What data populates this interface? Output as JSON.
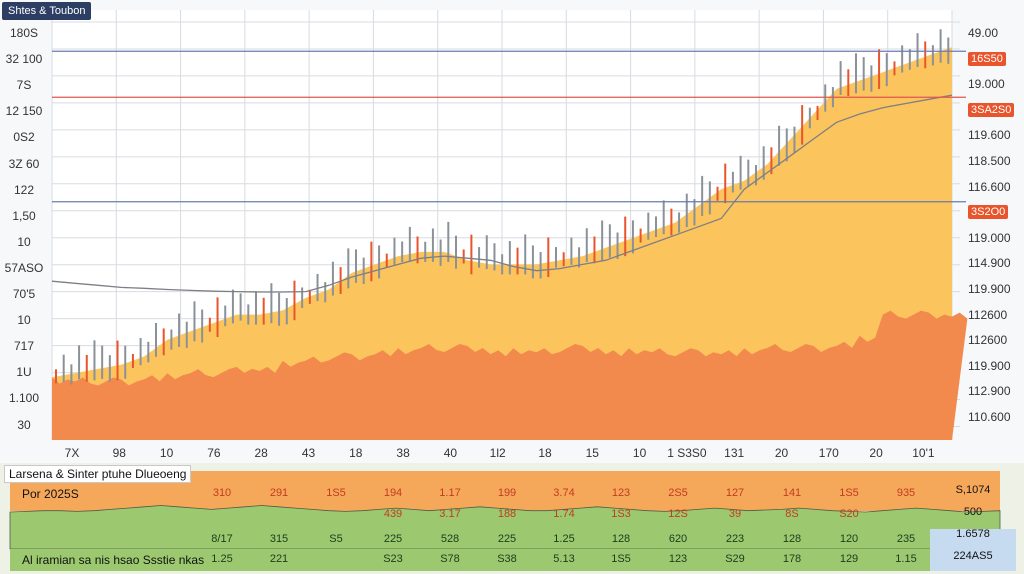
{
  "title": "Shtes & Toubon",
  "colors": {
    "orange_area": "#f28a4d",
    "yellow_area": "#fcc45d",
    "up_candle": "#8a9199",
    "down_candle": "#e8542c",
    "ma_line": "#7d7f86",
    "grid": "#d8dbe0",
    "hline_blue": "#6a7bb0",
    "hline_red": "#e0574f",
    "panel_orange": "#f6a85a",
    "panel_green": "#9cc96f",
    "panel_lightblue": "#c6dbef"
  },
  "chart_data": {
    "type": "area",
    "left_axis_labels": [
      "180S",
      "32 100",
      "7S",
      "12 150",
      "0S2",
      "3Z 60",
      "122",
      "1,50",
      "10",
      "57ASO",
      "70'5",
      "10",
      "717",
      "1U",
      "1.100",
      "30"
    ],
    "right_axis_labels": [
      "49.00",
      "16S50",
      "19.000",
      "3SA2S0",
      "119.600",
      "118.500",
      "116.600",
      "3S2O0",
      "119.000",
      "114.900",
      "119.900",
      "112600",
      "112600",
      "119.900",
      "112.900",
      "110.600"
    ],
    "right_axis_tags": [
      "16S50",
      "3SA2S0",
      "3S2O0"
    ],
    "x_tick_labels": [
      "7X",
      "98",
      "10",
      "76",
      "28",
      "43",
      "18",
      "38",
      "40",
      "1l2",
      "18",
      "15",
      "10",
      "1 S3S0",
      "131",
      "20",
      "170",
      "20",
      "10'1"
    ],
    "series": [
      {
        "name": "orange",
        "values": [
          14,
          14,
          14,
          14,
          15,
          15,
          16,
          16,
          17,
          17,
          18,
          19,
          20,
          20,
          21,
          21,
          22,
          22,
          22,
          21,
          21,
          21,
          22,
          22,
          21,
          21,
          21,
          21,
          21,
          21,
          21,
          22,
          22,
          22,
          23,
          24,
          30,
          30,
          30,
          30
        ]
      },
      {
        "name": "yellow",
        "values": [
          15,
          16,
          17,
          18,
          20,
          24,
          26,
          28,
          30,
          30,
          31,
          34,
          36,
          40,
          42,
          44,
          45,
          45,
          43,
          42,
          42,
          42,
          43,
          44,
          46,
          48,
          50,
          52,
          56,
          60,
          62,
          66,
          72,
          78,
          84,
          86,
          88,
          90,
          92,
          94
        ]
      },
      {
        "name": "ma",
        "values": [
          38,
          37.5,
          37,
          36.5,
          36.3,
          36,
          35.8,
          35.6,
          35.5,
          35.4,
          35.4,
          35.5,
          37,
          39,
          40.5,
          42,
          43.5,
          44,
          43.5,
          43,
          41.5,
          40.5,
          41,
          42,
          43,
          45,
          47,
          49,
          51,
          53,
          60,
          64,
          68,
          72,
          76,
          78,
          79.5,
          80.5,
          81.5,
          82.5
        ]
      }
    ],
    "hlines": [
      {
        "value": 93,
        "color": "blue"
      },
      {
        "value": 82,
        "color": "red"
      },
      {
        "value": 57,
        "color": "blue"
      }
    ],
    "ylim": [
      0,
      100
    ],
    "grid": true
  },
  "panel": {
    "title": "Larsena & Sinter ptuhe Dlueoeng",
    "subtitle": "Por 2025S",
    "bottom_label": "Al iramian sa nis hsao Ssstie nkas",
    "row1": [
      "310",
      "291",
      "1S5",
      "194",
      "1.17",
      "199",
      "3.74",
      "123",
      "2S5",
      "127",
      "141",
      "1S5",
      "935"
    ],
    "row2": [
      "",
      "",
      "",
      "439",
      "3.17",
      "188",
      "1.74",
      "1S3",
      "12S",
      "39",
      "8S",
      "S20",
      ""
    ],
    "row3": [
      "8/17",
      "315",
      "S5",
      "225",
      "528",
      "225",
      "1.25",
      "128",
      "620",
      "223",
      "128",
      "120",
      "235"
    ],
    "row4": [
      "1.25",
      "221",
      "",
      "S23",
      "S78",
      "S38",
      "5.13",
      "1S5",
      "123",
      "S29",
      "178",
      "129",
      "1.15"
    ],
    "right_values": [
      "S,1074",
      "500",
      "1.6578",
      "224AS5"
    ],
    "wave": [
      10,
      10.5,
      11,
      11,
      10.5,
      11,
      12,
      13,
      14,
      15,
      14,
      13,
      12,
      13,
      14,
      15,
      14,
      13,
      12,
      11,
      10.5,
      11,
      12,
      13,
      12,
      11,
      12,
      13,
      14,
      13,
      12,
      11,
      11,
      12,
      13,
      14,
      13,
      12,
      11,
      10.5,
      11,
      12,
      13,
      12,
      11,
      11.5,
      12,
      13,
      12,
      11,
      10.5,
      10,
      11,
      12,
      13,
      12,
      11,
      10,
      10.5,
      11
    ]
  }
}
